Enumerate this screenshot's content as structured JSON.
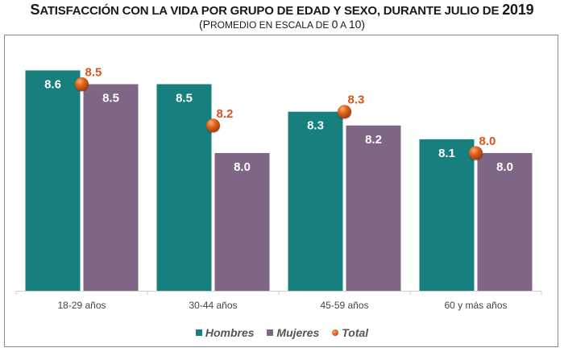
{
  "title_parts": [
    {
      "text": "S",
      "big": true
    },
    {
      "text": "ATISFACCIÓN CON LA VIDA POR GRUPO DE EDAD Y SEXO, DURANTE JULIO DE ",
      "big": false
    },
    {
      "text": "2019",
      "big": true
    }
  ],
  "subtitle_parts": [
    {
      "text": "(P",
      "big": true
    },
    {
      "text": "ROMEDIO EN ESCALA DE ",
      "big": false
    },
    {
      "text": "0",
      "big": true
    },
    {
      "text": " A ",
      "big": false
    },
    {
      "text": "10)",
      "big": true
    }
  ],
  "colors": {
    "hombres": "#17807e",
    "mujeres": "#806685",
    "total": "#e0661c",
    "total_label": "#d9541e",
    "bar_label": "#ffffff",
    "axis": "#d0d0d0",
    "tick_text": "#444444"
  },
  "chart_data": {
    "type": "bar",
    "title": "Satisfacción con la vida por grupo de edad y sexo, durante julio de 2019",
    "subtitle": "(Promedio en escala de 0 a 10)",
    "categories": [
      "18-29 años",
      "30-44 años",
      "45-59 años",
      "60 y más años"
    ],
    "series": [
      {
        "name": "Hombres",
        "kind": "bar",
        "values": [
          8.6,
          8.5,
          8.3,
          8.1
        ]
      },
      {
        "name": "Mujeres",
        "kind": "bar",
        "values": [
          8.5,
          8.0,
          8.2,
          8.0
        ]
      },
      {
        "name": "Total",
        "kind": "point",
        "values": [
          8.5,
          8.2,
          8.3,
          8.0
        ]
      }
    ],
    "xlabel": "",
    "ylabel": "",
    "ylim": [
      7.0,
      8.9
    ],
    "grid": false,
    "y_axis_visible": false,
    "legend": {
      "position": "bottom",
      "entries": [
        "Hombres",
        "Mujeres",
        "Total"
      ]
    }
  }
}
